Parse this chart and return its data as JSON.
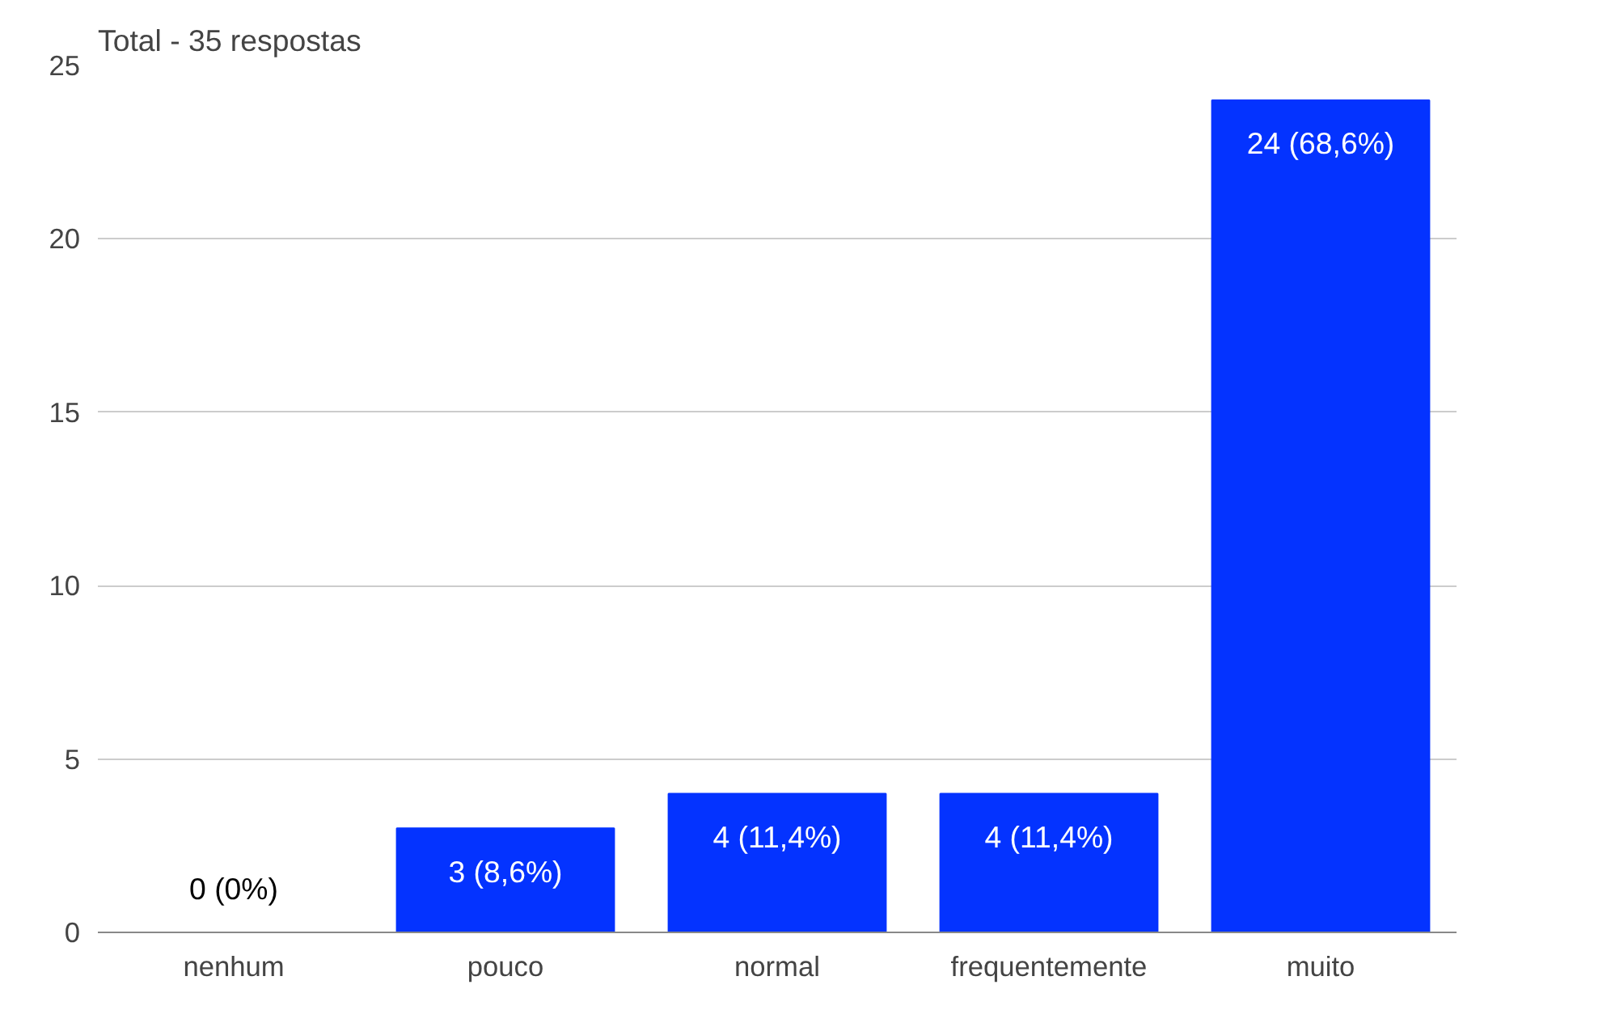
{
  "chart_data": {
    "type": "bar",
    "title": "Total - 35 respostas",
    "categories": [
      "nenhum",
      "pouco",
      "normal",
      "frequentemente",
      "muito"
    ],
    "values": [
      0,
      3,
      4,
      4,
      24
    ],
    "value_labels": [
      "0 (0%)",
      "3 (8,6%)",
      "4 (11,4%)",
      "4 (11,4%)",
      "24 (68,6%)"
    ],
    "color": "#0433ff",
    "ylim": [
      0,
      25
    ],
    "yticks": [
      0,
      5,
      10,
      15,
      20,
      25
    ],
    "grid": "y"
  }
}
